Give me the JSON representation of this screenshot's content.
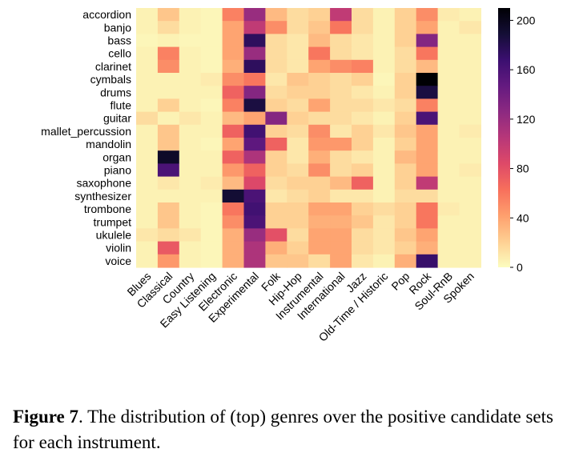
{
  "chart_data": {
    "type": "heatmap",
    "title": "",
    "xlabel": "",
    "ylabel": "",
    "rows": [
      "accordion",
      "banjo",
      "bass",
      "cello",
      "clarinet",
      "cymbals",
      "drums",
      "flute",
      "guitar",
      "mallet_percussion",
      "mandolin",
      "organ",
      "piano",
      "saxophone",
      "synthesizer",
      "trombone",
      "trumpet",
      "ukulele",
      "violin",
      "voice"
    ],
    "columns": [
      "Blues",
      "Classical",
      "Country",
      "Easy Listening",
      "Electronic",
      "Experimental",
      "Folk",
      "Hip-Hop",
      "Instrumental",
      "International",
      "Jazz",
      "Old-Time / Historic",
      "Pop",
      "Rock",
      "Soul-RnB",
      "Spoken"
    ],
    "values": [
      [
        5,
        25,
        5,
        3,
        55,
        120,
        30,
        15,
        20,
        100,
        15,
        5,
        20,
        50,
        8,
        5
      ],
      [
        5,
        15,
        5,
        3,
        40,
        100,
        50,
        15,
        25,
        60,
        15,
        5,
        20,
        40,
        5,
        10
      ],
      [
        3,
        5,
        3,
        3,
        40,
        175,
        15,
        10,
        30,
        15,
        10,
        5,
        20,
        130,
        5,
        5
      ],
      [
        5,
        55,
        5,
        3,
        40,
        120,
        15,
        10,
        60,
        15,
        10,
        5,
        15,
        60,
        5,
        5
      ],
      [
        5,
        50,
        5,
        3,
        35,
        175,
        15,
        10,
        40,
        50,
        55,
        5,
        15,
        30,
        5,
        5
      ],
      [
        5,
        5,
        5,
        8,
        50,
        60,
        10,
        25,
        20,
        15,
        20,
        3,
        20,
        210,
        5,
        5
      ],
      [
        5,
        5,
        5,
        5,
        70,
        130,
        15,
        20,
        20,
        15,
        10,
        5,
        20,
        185,
        5,
        5
      ],
      [
        5,
        20,
        5,
        3,
        55,
        185,
        20,
        15,
        40,
        15,
        15,
        10,
        15,
        55,
        5,
        5
      ],
      [
        15,
        5,
        10,
        5,
        30,
        40,
        130,
        20,
        15,
        15,
        10,
        5,
        20,
        160,
        5,
        5
      ],
      [
        5,
        25,
        5,
        5,
        70,
        165,
        20,
        15,
        50,
        10,
        20,
        10,
        25,
        40,
        5,
        8
      ],
      [
        5,
        25,
        5,
        3,
        40,
        150,
        70,
        10,
        45,
        45,
        20,
        5,
        20,
        40,
        5,
        5
      ],
      [
        5,
        195,
        5,
        5,
        70,
        110,
        20,
        10,
        35,
        15,
        10,
        5,
        30,
        40,
        5,
        5
      ],
      [
        5,
        160,
        5,
        5,
        45,
        70,
        20,
        15,
        50,
        15,
        20,
        5,
        20,
        40,
        5,
        8
      ],
      [
        5,
        10,
        5,
        8,
        30,
        85,
        15,
        20,
        20,
        30,
        70,
        5,
        20,
        100,
        5,
        5
      ],
      [
        5,
        5,
        5,
        5,
        190,
        160,
        10,
        15,
        20,
        10,
        10,
        5,
        15,
        15,
        5,
        5
      ],
      [
        5,
        25,
        5,
        3,
        60,
        165,
        20,
        20,
        40,
        40,
        20,
        15,
        20,
        60,
        8,
        5
      ],
      [
        5,
        25,
        5,
        3,
        50,
        160,
        20,
        20,
        35,
        35,
        25,
        10,
        20,
        60,
        5,
        5
      ],
      [
        10,
        15,
        10,
        3,
        35,
        120,
        80,
        15,
        40,
        40,
        15,
        10,
        25,
        40,
        5,
        5
      ],
      [
        5,
        75,
        5,
        3,
        35,
        110,
        35,
        20,
        40,
        40,
        15,
        10,
        20,
        35,
        5,
        5
      ],
      [
        5,
        45,
        5,
        3,
        35,
        110,
        25,
        25,
        15,
        40,
        10,
        5,
        35,
        170,
        5,
        5
      ]
    ],
    "colorbar": {
      "min": 0,
      "max": 210,
      "ticks": [
        0,
        40,
        80,
        120,
        160,
        200
      ]
    },
    "colormap": [
      "#fcfdbf",
      "#fecf92",
      "#fe9f6d",
      "#f76f5c",
      "#de4968",
      "#b73779",
      "#8c2981",
      "#641a80",
      "#3b0f70",
      "#140e36",
      "#000004"
    ],
    "grid": false
  },
  "caption": {
    "label": "Figure 7",
    "text": ". The distribution of (top) genres over the positive candidate sets for each instrument."
  }
}
